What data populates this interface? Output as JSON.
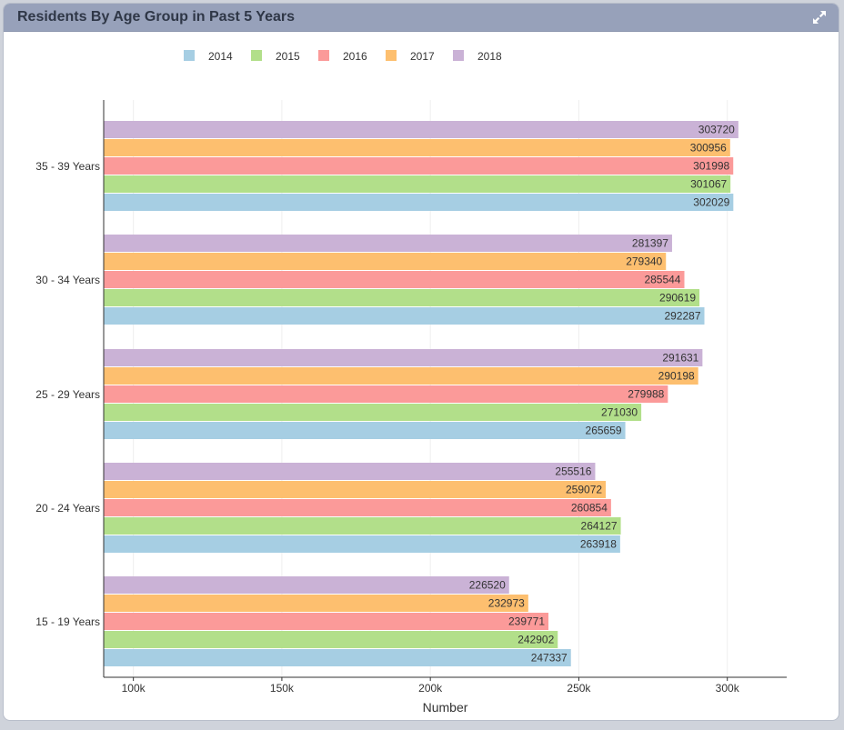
{
  "panel": {
    "title": "Residents By Age Group in Past 5 Years"
  },
  "icons": {
    "expand": "expand-arrows-icon"
  },
  "chart_data": {
    "type": "bar",
    "orientation": "horizontal",
    "title": "Residents By Age Group in Past 5 Years",
    "xlabel": "Number",
    "ylabel": "",
    "categories": [
      "15 - 19 Years",
      "20 - 24 Years",
      "25 - 29 Years",
      "30 - 34 Years",
      "35 - 39 Years"
    ],
    "series": [
      {
        "name": "2014",
        "color": "#a6cee3",
        "values": [
          247337,
          263918,
          265659,
          292287,
          302029
        ]
      },
      {
        "name": "2015",
        "color": "#b2df8a",
        "values": [
          242902,
          264127,
          271030,
          290619,
          301067
        ]
      },
      {
        "name": "2016",
        "color": "#fb9a99",
        "values": [
          239771,
          260854,
          279988,
          285544,
          301998
        ]
      },
      {
        "name": "2017",
        "color": "#fdbf6f",
        "values": [
          232973,
          259072,
          290198,
          279340,
          300956
        ]
      },
      {
        "name": "2018",
        "color": "#cab2d6",
        "values": [
          226520,
          255516,
          291631,
          281397,
          303720
        ]
      }
    ],
    "xlim": [
      90000,
      320000
    ],
    "xticks": [
      100000,
      150000,
      200000,
      250000,
      300000
    ],
    "xtick_labels": [
      "100k",
      "150k",
      "200k",
      "250k",
      "300k"
    ],
    "grid": "vertical",
    "legend_position": "top-left",
    "data_labels": true
  }
}
